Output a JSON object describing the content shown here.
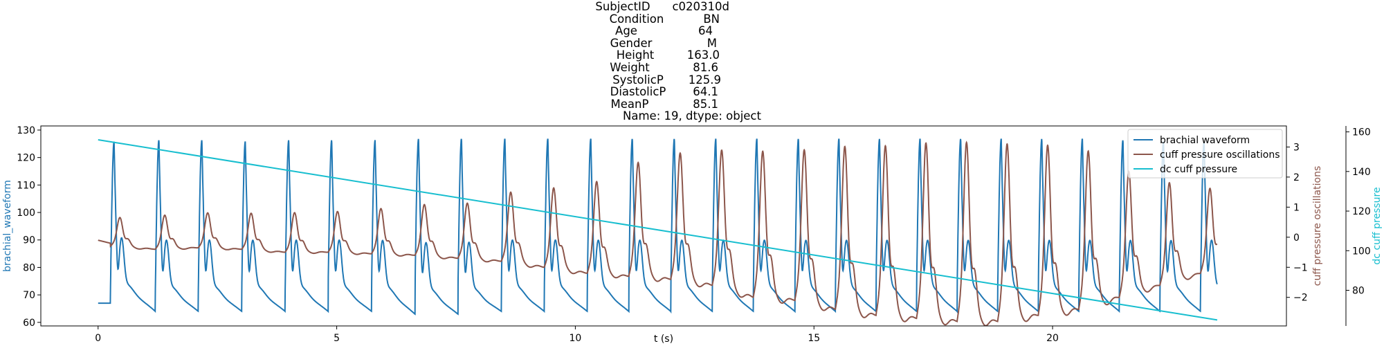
{
  "title_block": {
    "rows": [
      {
        "key": "SubjectID",
        "value": "c020310d"
      },
      {
        "key": "Condition",
        "value": "BN"
      },
      {
        "key": "Age",
        "value": "64"
      },
      {
        "key": "Gender",
        "value": "M"
      },
      {
        "key": "Height",
        "value": "163.0"
      },
      {
        "key": "Weight",
        "value": "81.6"
      },
      {
        "key": "SystolicP",
        "value": "125.9"
      },
      {
        "key": "DiastolicP",
        "value": "64.1"
      },
      {
        "key": "MeanP",
        "value": "85.1"
      }
    ],
    "footer": "Name: 19, dtype: object"
  },
  "chart_data": {
    "type": "line",
    "xlabel": "t (s)",
    "xlim": [
      -1.2,
      24.9
    ],
    "xticks": [
      0,
      5,
      10,
      15,
      20
    ],
    "x_start": 0,
    "x_end": 23.45,
    "grid": false,
    "legend_position": "top-right",
    "axes": {
      "left": {
        "label": "brachial_waveform",
        "color": "#1f77b4",
        "ylim": [
          58.7,
          131.5
        ],
        "ticks": [
          60,
          70,
          80,
          90,
          100,
          110,
          120,
          130
        ]
      },
      "right1": {
        "label": "cuff pressure oscillations",
        "color": "#8c564b",
        "ylim": [
          -2.95,
          3.7
        ],
        "ticks": [
          -2,
          -1,
          0,
          1,
          2,
          3
        ]
      },
      "right2": {
        "label": "dc cuff pressure",
        "color": "#17becf",
        "ylim": [
          62,
          163
        ],
        "ticks": [
          80,
          100,
          120,
          140,
          160
        ]
      }
    },
    "series": [
      {
        "name": "brachial waveform",
        "color": "#1f77b4",
        "axis": "left",
        "beat_onsets": [
          0.26,
          1.2,
          2.1,
          3.01,
          3.92,
          4.82,
          5.73,
          6.64,
          7.54,
          8.45,
          9.35,
          10.25,
          11.12,
          12.0,
          12.87,
          13.73,
          14.6,
          15.45,
          16.3,
          17.15,
          18.0,
          18.85,
          19.7,
          20.55,
          21.4,
          22.25,
          23.1
        ],
        "beat_peaks": [
          126,
          126.5,
          126.5,
          126,
          126.5,
          126.5,
          126.5,
          127,
          127,
          127,
          127,
          127,
          127,
          127,
          127,
          127,
          127,
          127,
          127,
          127,
          127,
          127,
          127,
          127,
          126.5,
          126,
          126
        ],
        "beat_troughs": [
          65,
          64,
          64,
          64,
          64,
          64,
          64,
          63,
          63,
          64,
          64,
          64,
          64,
          64,
          64,
          64,
          64,
          64,
          64,
          64,
          64,
          64,
          64,
          64,
          64,
          64,
          64
        ],
        "start_value": 67,
        "end_value": 65
      },
      {
        "name": "cuff pressure oscillations",
        "color": "#8c564b",
        "axis": "right1",
        "beat_peaks": [
          0.7,
          0.75,
          0.85,
          0.85,
          0.85,
          0.9,
          1.0,
          1.15,
          1.2,
          1.6,
          1.75,
          1.95,
          2.6,
          2.95,
          3.1,
          3.0,
          3.1,
          3.2,
          3.2,
          3.3,
          3.3,
          3.2,
          3.15,
          2.9,
          2.2,
          1.8,
          1.6
        ],
        "beat_troughs": [
          -0.3,
          -0.4,
          -0.35,
          -0.4,
          -0.5,
          -0.5,
          -0.55,
          -0.6,
          -0.7,
          -0.8,
          -1.0,
          -1.2,
          -1.3,
          -1.4,
          -1.6,
          -2.0,
          -2.1,
          -2.4,
          -2.6,
          -2.7,
          -2.8,
          -2.8,
          -2.6,
          -2.4,
          -2.0,
          -1.6,
          -1.2
        ],
        "start_value": -0.1,
        "end_value": -0.8
      },
      {
        "name": "dc cuff pressure",
        "color": "#17becf",
        "axis": "right2",
        "x": [
          0,
          23.45
        ],
        "y": [
          156,
          65
        ]
      }
    ]
  }
}
